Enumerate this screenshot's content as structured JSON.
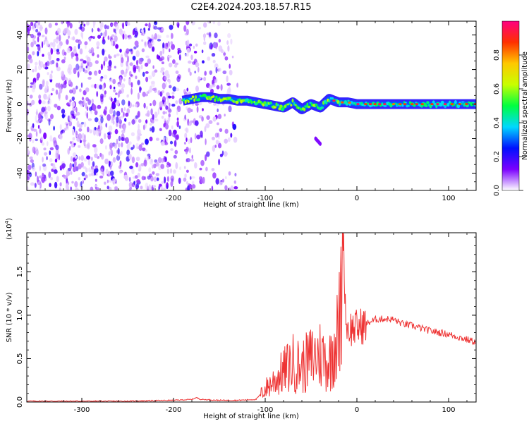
{
  "title": "C2E4.2024.203.18.57.R15",
  "chart_data": [
    {
      "type": "heatmap",
      "xlabel": "Height of straight line (km)",
      "ylabel": "Frequency (Hz)",
      "xlim": [
        -360,
        130
      ],
      "ylim": [
        -50,
        48
      ],
      "x_ticks": [
        -300,
        -200,
        -100,
        0,
        100
      ],
      "y_ticks": [
        -40,
        -20,
        0,
        20,
        40
      ],
      "colorbar": {
        "label": "Normalized spectral amplitude",
        "range": [
          0,
          1
        ],
        "ticks": [
          "0.0",
          "0.2",
          "0.4",
          "0.6",
          "0.8"
        ],
        "colors": [
          "#ffffff",
          "#7b00ff",
          "#0010ff",
          "#00d8ff",
          "#00ff40",
          "#c8ff00",
          "#ffc800",
          "#ff3000",
          "#ff0080"
        ]
      },
      "noise_region_km": [
        -360,
        -130
      ],
      "signal_trace": {
        "x": [
          -190,
          -180,
          -170,
          -160,
          -150,
          -140,
          -130,
          -120,
          -110,
          -100,
          -90,
          -80,
          -70,
          -60,
          -50,
          -40,
          -30,
          -20,
          -10,
          0,
          20,
          40,
          60,
          80,
          100,
          130
        ],
        "y": [
          2,
          3,
          4,
          4,
          3,
          3,
          2,
          2,
          1,
          0,
          -1,
          -2,
          1,
          -3,
          0,
          -2,
          3,
          1,
          1,
          0,
          0,
          0,
          0,
          0,
          0,
          0
        ]
      },
      "secondary_echo": {
        "x": [
          -45,
          -40
        ],
        "y": [
          -20,
          -23
        ]
      }
    },
    {
      "type": "line",
      "xlabel": "Height of straight line (km)",
      "ylabel": "SNR (10 * v/v)",
      "y_multiplier": "(x10^4)",
      "xlim": [
        -360,
        130
      ],
      "ylim": [
        0,
        1.95
      ],
      "x_ticks": [
        -300,
        -200,
        -100,
        0,
        100
      ],
      "y_ticks": [
        "0.0",
        "0.5",
        "1.0",
        "1.5"
      ],
      "series_color": "#ee3333",
      "series": [
        {
          "x": [
            -360,
            -300,
            -250,
            -200,
            -180,
            -175,
            -170,
            -150,
            -130,
            -110,
            -100,
            -90,
            -80,
            -70,
            -60,
            -50,
            -40,
            -30,
            -25,
            -20,
            -17,
            -15,
            -12,
            -10,
            -5,
            0,
            10,
            20,
            30,
            40,
            50,
            60,
            70,
            80,
            90,
            100,
            110,
            120,
            130
          ],
          "y": [
            0.01,
            0.01,
            0.01,
            0.02,
            0.03,
            0.05,
            0.03,
            0.02,
            0.02,
            0.03,
            0.15,
            0.25,
            0.35,
            0.45,
            0.4,
            0.5,
            0.55,
            0.45,
            0.7,
            0.75,
            1.2,
            1.95,
            0.95,
            0.85,
            0.85,
            0.85,
            0.9,
            0.95,
            0.96,
            0.95,
            0.9,
            0.88,
            0.85,
            0.82,
            0.8,
            0.78,
            0.75,
            0.72,
            0.69
          ]
        }
      ]
    }
  ]
}
